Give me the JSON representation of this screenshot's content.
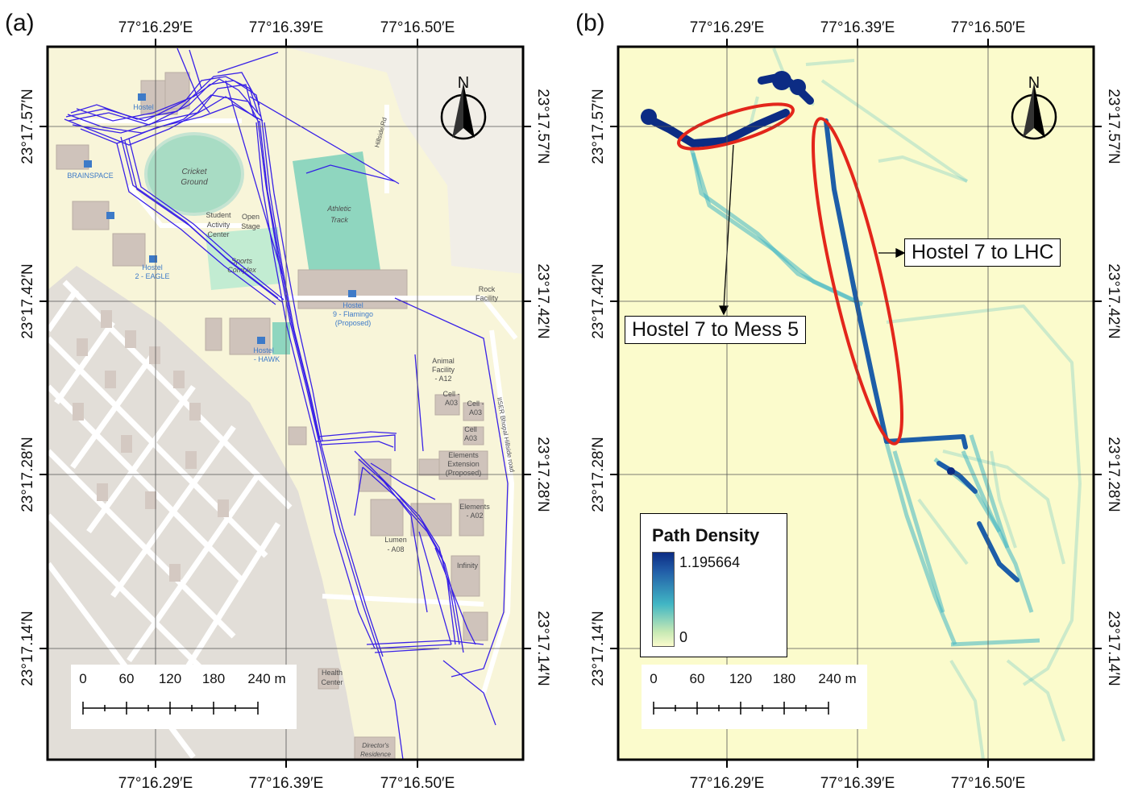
{
  "panels": [
    {
      "tag": "(a)"
    },
    {
      "tag": "(b)"
    }
  ],
  "axes": {
    "lon_labels": [
      "77°16.29′E",
      "77°16.39′E",
      "77°16.50′E"
    ],
    "lat_labels": [
      "23°17.57′N",
      "23°17.42′N",
      "23°17.28′N",
      "23°17.14′N"
    ]
  },
  "north_arrow": {
    "letter": "N",
    "icon": "north-arrow-icon"
  },
  "scale_bar": {
    "ticks": [
      "0",
      "60",
      "120",
      "180"
    ],
    "last": "240 m"
  },
  "map_a": {
    "labels": {
      "hostel_1": "Hostel",
      "brainspace": "BRAINSPACE",
      "cricket": "Cricket",
      "ground": "Ground",
      "student": "Student",
      "activity": "Activity",
      "center": "Center",
      "open": "Open",
      "stage": "Stage",
      "sports": "Sports",
      "complex": "Complex",
      "athletic": "Athletic",
      "track": "Track",
      "hostel_eagle_1": "Hostel",
      "hostel_eagle_2": "2 - EAGLE",
      "hostel9_1": "Hostel",
      "hostel9_2": "9 - Flamingo",
      "hostel9_3": "(Proposed)",
      "hawk_1": "Hostel",
      "hawk_2": "- HAWK",
      "rock_1": "Rock",
      "rock_2": "Facility",
      "animal_1": "Animal",
      "animal_2": "Facility",
      "animal_3": "- A12",
      "cell1_1": "Cell -",
      "cell1_2": "A03",
      "cell2_1": "Cell -",
      "cell2_2": "A03",
      "cell3_1": "Cell",
      "cell3_2": "A03",
      "elemext_1": "Elements",
      "elemext_2": "Extension",
      "elemext_3": "(Proposed)",
      "elem_a02_1": "Elements",
      "elem_a02_2": "- A02",
      "lumen_1": "Lumen",
      "lumen_2": "- A08",
      "infinity": "Infinity",
      "health_1": "Health",
      "health_2": "Center",
      "director_1": "Director's",
      "director_2": "Residence",
      "hillside": "Hillside Rd",
      "road_label": "IISER Bhopal Hillside road"
    }
  },
  "map_b": {
    "annotations": [
      "Hostel 7 to LHC",
      "Hostel 7 to Mess 5"
    ],
    "legend": {
      "title": "Path Density",
      "max": "1.195664",
      "min": "0"
    }
  },
  "colors": {
    "trajectory": "#2f16e8",
    "density_low": "#fbfbcc",
    "density_mid": "#41b6c4",
    "density_high": "#0c2c84",
    "highlight": "#e3261b",
    "map_bg": "#f8f5d9",
    "urban_bg": "#e2ded8",
    "green": "#9fdcc6"
  }
}
